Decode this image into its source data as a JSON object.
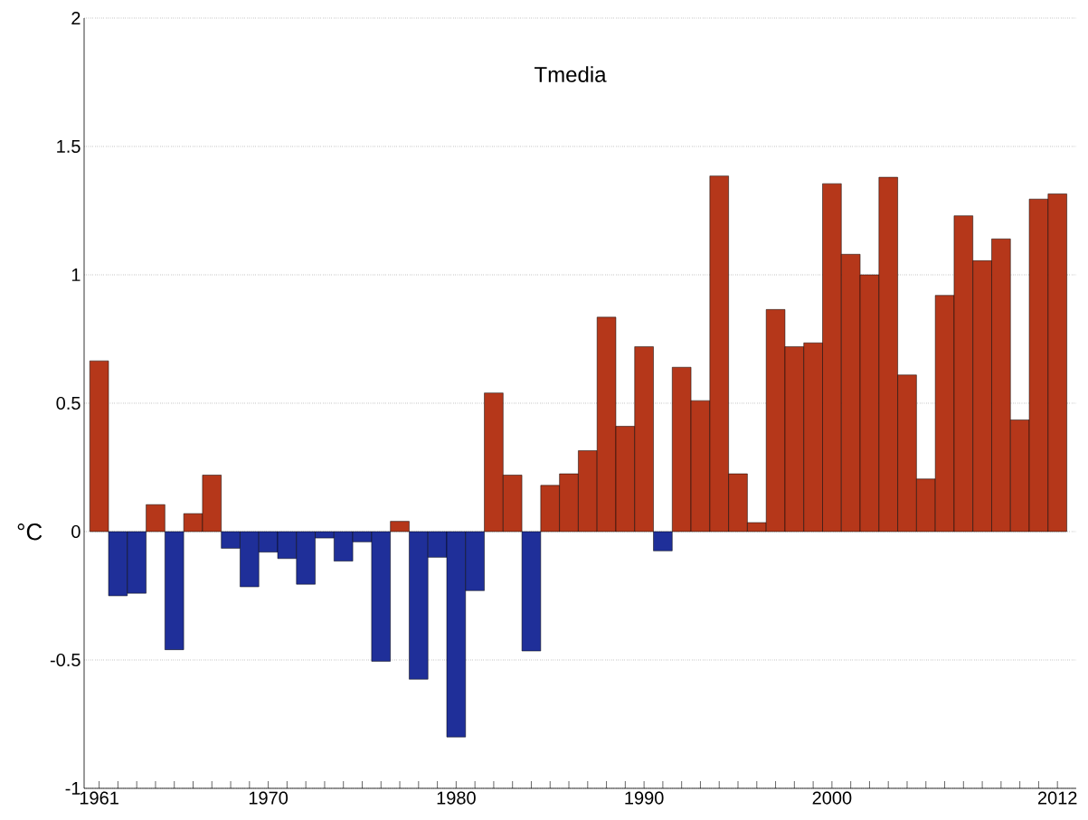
{
  "chart_data": {
    "type": "bar",
    "title": "Tmedia",
    "ylabel": "°C",
    "x": [
      1961,
      1962,
      1963,
      1964,
      1965,
      1966,
      1967,
      1968,
      1969,
      1970,
      1971,
      1972,
      1973,
      1974,
      1975,
      1976,
      1977,
      1978,
      1979,
      1980,
      1981,
      1982,
      1983,
      1984,
      1985,
      1986,
      1987,
      1988,
      1989,
      1990,
      1991,
      1992,
      1993,
      1994,
      1995,
      1996,
      1997,
      1998,
      1999,
      2000,
      2001,
      2002,
      2003,
      2004,
      2005,
      2006,
      2007,
      2008,
      2009,
      2010,
      2011,
      2012
    ],
    "values": [
      0.665,
      -0.25,
      -0.24,
      0.105,
      -0.46,
      0.07,
      0.22,
      -0.065,
      -0.215,
      -0.08,
      -0.105,
      -0.205,
      -0.025,
      -0.115,
      -0.04,
      -0.505,
      0.04,
      -0.575,
      -0.1,
      -0.8,
      -0.23,
      0.54,
      0.22,
      -0.465,
      0.18,
      0.225,
      0.315,
      0.835,
      0.41,
      0.72,
      -0.075,
      0.64,
      0.51,
      1.385,
      0.225,
      0.035,
      0.865,
      0.72,
      0.735,
      1.355,
      1.08,
      1.0,
      1.38,
      0.61,
      0.205,
      0.92,
      1.23,
      1.055,
      1.14,
      0.435,
      1.295,
      1.315
    ],
    "colors": [
      "#b5371a",
      "#1f2f99",
      "#1f2f99",
      "#b5371a",
      "#1f2f99",
      "#b5371a",
      "#b5371a",
      "#1f2f99",
      "#1f2f99",
      "#1f2f99",
      "#1f2f99",
      "#1f2f99",
      "#1f2f99",
      "#1f2f99",
      "#1f2f99",
      "#1f2f99",
      "#b5371a",
      "#1f2f99",
      "#1f2f99",
      "#1f2f99",
      "#1f2f99",
      "#b5371a",
      "#b5371a",
      "#1f2f99",
      "#b5371a",
      "#b5371a",
      "#b5371a",
      "#b5371a",
      "#b5371a",
      "#b5371a",
      "#1f2f99",
      "#b5371a",
      "#b5371a",
      "#b5371a",
      "#b5371a",
      "#b5371a",
      "#b5371a",
      "#b5371a",
      "#b5371a",
      "#b5371a",
      "#b5371a",
      "#b5371a",
      "#b5371a",
      "#b5371a",
      "#b5371a",
      "#b5371a",
      "#b5371a",
      "#b5371a",
      "#b5371a",
      "#b5371a",
      "#b5371a",
      "#b5371a"
    ],
    "xlim": [
      1960.2,
      2013
    ],
    "xticks": [
      1961,
      {
        "value": 1962,
        "label": null
      },
      {
        "value": 1963,
        "label": null
      },
      {
        "value": 1964,
        "label": null
      },
      {
        "value": 1965,
        "label": null
      },
      {
        "value": 1966,
        "label": null
      },
      {
        "value": 1967,
        "label": null
      },
      {
        "value": 1968,
        "label": null
      },
      {
        "value": 1969,
        "label": null
      },
      1970,
      {
        "value": 1971,
        "label": null
      },
      {
        "value": 1972,
        "label": null
      },
      {
        "value": 1973,
        "label": null
      },
      {
        "value": 1974,
        "label": null
      },
      {
        "value": 1975,
        "label": null
      },
      {
        "value": 1976,
        "label": null
      },
      {
        "value": 1977,
        "label": null
      },
      {
        "value": 1978,
        "label": null
      },
      {
        "value": 1979,
        "label": null
      },
      1980,
      {
        "value": 1981,
        "label": null
      },
      {
        "value": 1982,
        "label": null
      },
      {
        "value": 1983,
        "label": null
      },
      {
        "value": 1984,
        "label": null
      },
      {
        "value": 1985,
        "label": null
      },
      {
        "value": 1986,
        "label": null
      },
      {
        "value": 1987,
        "label": null
      },
      {
        "value": 1988,
        "label": null
      },
      {
        "value": 1989,
        "label": null
      },
      1990,
      {
        "value": 1991,
        "label": null
      },
      {
        "value": 1992,
        "label": null
      },
      {
        "value": 1993,
        "label": null
      },
      {
        "value": 1994,
        "label": null
      },
      {
        "value": 1995,
        "label": null
      },
      {
        "value": 1996,
        "label": null
      },
      {
        "value": 1997,
        "label": null
      },
      {
        "value": 1998,
        "label": null
      },
      {
        "value": 1999,
        "label": null
      },
      2000,
      {
        "value": 2001,
        "label": null
      },
      {
        "value": 2002,
        "label": null
      },
      {
        "value": 2003,
        "label": null
      },
      {
        "value": 2004,
        "label": null
      },
      {
        "value": 2005,
        "label": null
      },
      {
        "value": 2006,
        "label": null
      },
      {
        "value": 2007,
        "label": null
      },
      {
        "value": 2008,
        "label": null
      },
      {
        "value": 2009,
        "label": null
      },
      {
        "value": 2010,
        "label": null
      },
      {
        "value": 2011,
        "label": null
      },
      2012
    ],
    "ylim": [
      -1,
      2
    ],
    "yticks": [
      -1,
      -0.5,
      0,
      0.5,
      1,
      1.5,
      2
    ],
    "grid": "y"
  }
}
